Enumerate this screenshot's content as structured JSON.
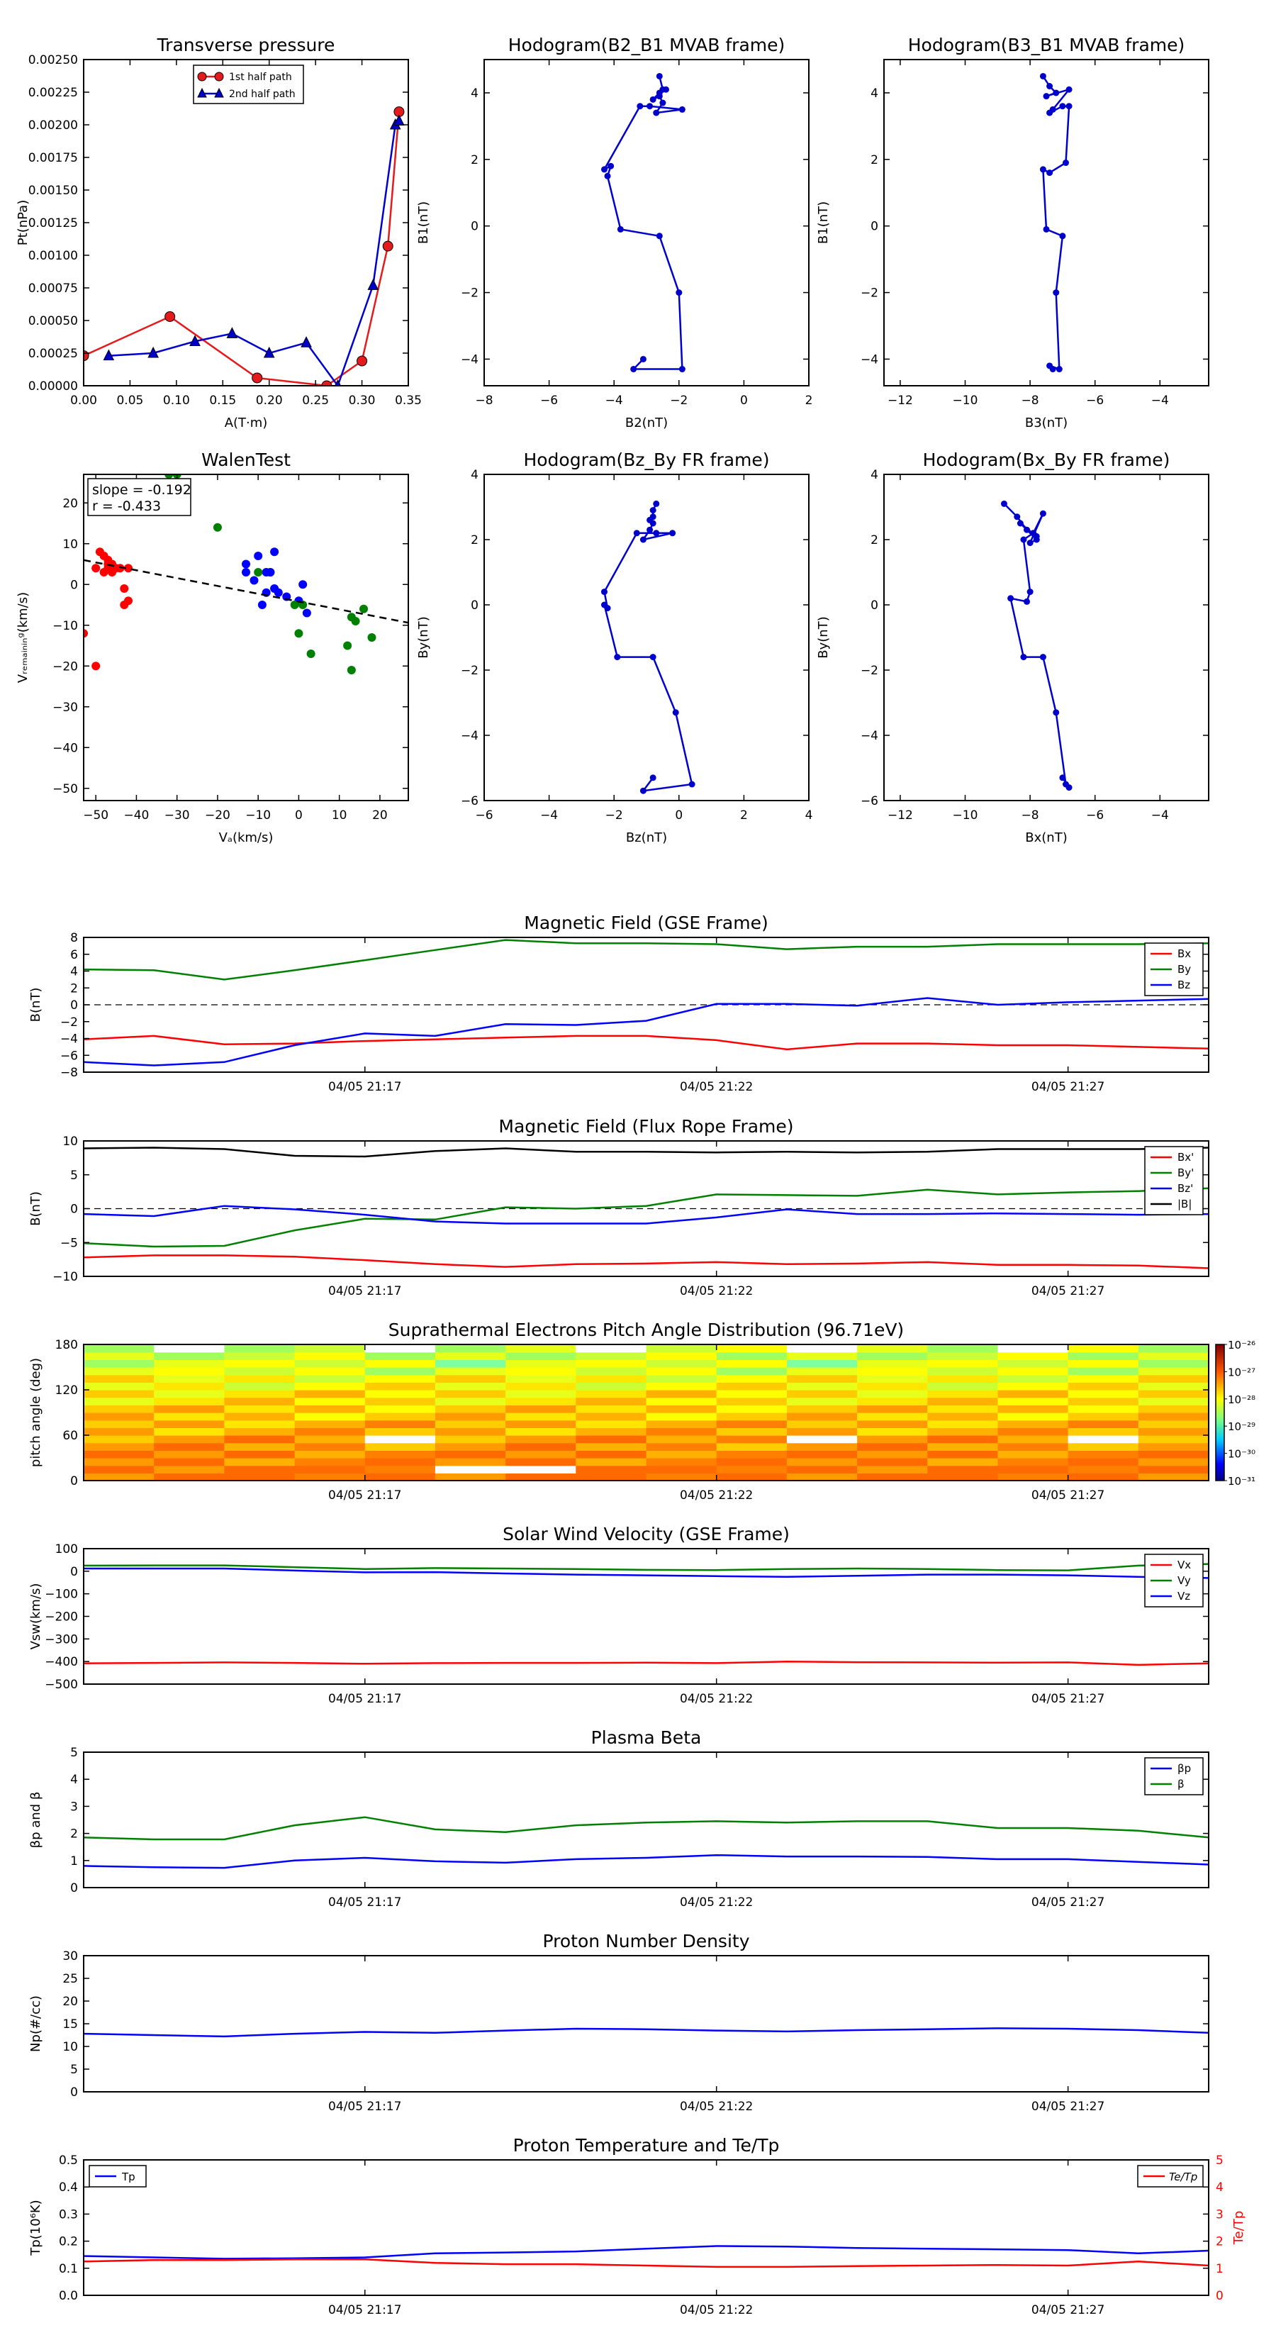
{
  "chart_data": [
    {
      "id": "tp",
      "type": "line",
      "title": "Transverse pressure",
      "xlabel": "A(T·m)",
      "ylabel": "Pt(nPa)",
      "xlim": [
        0,
        0.35
      ],
      "ylim": [
        0,
        0.0025
      ],
      "xticks": [
        "0.00",
        "0.05",
        "0.10",
        "0.15",
        "0.20",
        "0.25",
        "0.30",
        "0.35"
      ],
      "yticks": [
        "0.00000",
        "0.00025",
        "0.00050",
        "0.00075",
        "0.00100",
        "0.00125",
        "0.00150",
        "0.00175",
        "0.00200",
        "0.00225",
        "0.00250"
      ],
      "legend": [
        "1st half path",
        "2nd half path"
      ],
      "series": [
        {
          "name": "1st half path",
          "color": "#e41a1c",
          "marker": "circle",
          "x": [
            0.0,
            0.093,
            0.187,
            0.262,
            0.3,
            0.328,
            0.34
          ],
          "y": [
            0.00023,
            0.00053,
            6e-05,
            0.0,
            0.00019,
            0.00107,
            0.0021
          ]
        },
        {
          "name": "2nd half path",
          "color": "#0000cc",
          "marker": "triangle",
          "x": [
            0.027,
            0.075,
            0.12,
            0.16,
            0.2,
            0.24,
            0.274,
            0.312,
            0.336,
            0.34
          ],
          "y": [
            0.00023,
            0.00025,
            0.00034,
            0.0004,
            0.00025,
            0.00033,
            0.0,
            0.00077,
            0.002,
            0.00203
          ]
        }
      ]
    },
    {
      "id": "h1",
      "type": "line",
      "title": "Hodogram(B2_B1 MVAB frame)",
      "xlabel": "B2(nT)",
      "ylabel": "B1(nT)",
      "xlim": [
        -8,
        2
      ],
      "ylim": [
        -4.8,
        5.0
      ],
      "xticks": [
        "−8",
        "−6",
        "−4",
        "−2",
        "0",
        "2"
      ],
      "yticks": [
        "−4",
        "−2",
        "0",
        "2",
        "4"
      ],
      "series": [
        {
          "name": "B2-B1",
          "color": "#0000cc",
          "x": [
            -3.1,
            -3.4,
            -1.9,
            -2.0,
            -2.6,
            -3.8,
            -4.2,
            -4.1,
            -4.3,
            -3.2,
            -2.9,
            -1.9,
            -2.7,
            -2.5,
            -2.6,
            -2.8,
            -2.6,
            -2.4,
            -2.5,
            -2.6
          ],
          "y": [
            -4.0,
            -4.3,
            -4.3,
            -2.0,
            -0.3,
            -0.1,
            1.5,
            1.8,
            1.7,
            3.6,
            3.6,
            3.5,
            3.4,
            3.7,
            3.9,
            3.8,
            4.0,
            4.1,
            4.1,
            4.5
          ]
        }
      ]
    },
    {
      "id": "h2",
      "type": "line",
      "title": "Hodogram(B3_B1 MVAB frame)",
      "xlabel": "B3(nT)",
      "ylabel": "B1(nT)",
      "xlim": [
        -12.5,
        -2.5
      ],
      "ylim": [
        -4.8,
        5.0
      ],
      "xticks": [
        "−12",
        "−10",
        "−8",
        "−6",
        "−4"
      ],
      "yticks": [
        "−4",
        "−2",
        "0",
        "2",
        "4"
      ],
      "series": [
        {
          "name": "B3-B1",
          "color": "#0000cc",
          "x": [
            -7.3,
            -7.4,
            -7.1,
            -7.2,
            -7.0,
            -7.5,
            -7.6,
            -7.4,
            -6.9,
            -6.8,
            -7.0,
            -7.4,
            -7.3,
            -6.8,
            -7.5,
            -7.2,
            -7.4,
            -7.6
          ],
          "y": [
            -4.3,
            -4.2,
            -4.3,
            -2.0,
            -0.3,
            -0.1,
            1.7,
            1.6,
            1.9,
            3.6,
            3.6,
            3.4,
            3.5,
            4.1,
            3.9,
            4.0,
            4.2,
            4.5
          ]
        }
      ]
    },
    {
      "id": "walen",
      "type": "scatter",
      "title": "WalenTest",
      "xlabel": "Vₐ(km/s)",
      "ylabel": "Vᵣₑₘₐᵢₙᵢₙᵍ(km/s)",
      "xlim": [
        -53,
        27
      ],
      "ylim": [
        -53,
        27
      ],
      "xticks": [
        "−50",
        "−40",
        "−30",
        "−20",
        "−10",
        "0",
        "10",
        "20"
      ],
      "yticks": [
        "−50",
        "−40",
        "−30",
        "−20",
        "−10",
        "0",
        "10",
        "20"
      ],
      "annotation": [
        "slope = -0.192",
        "r = -0.433"
      ],
      "fit": {
        "slope": -0.192,
        "intercept": -4.2
      },
      "series": [
        {
          "name": "red",
          "color": "#ff0000",
          "x": [
            -53,
            -50,
            -48,
            -48,
            -47,
            -47,
            -46,
            -45,
            -44,
            -43,
            -43,
            -42,
            -42,
            -49,
            -47,
            -46,
            -50
          ],
          "y": [
            -12,
            4,
            3,
            7,
            5,
            6,
            5,
            4,
            4,
            -1,
            -5,
            -4,
            4,
            8,
            4,
            3,
            -20
          ]
        },
        {
          "name": "blue",
          "color": "#0000ff",
          "x": [
            -13,
            -13,
            -10,
            -9,
            -8,
            -8,
            -7,
            -6,
            -6,
            -5,
            -3,
            0,
            1,
            2,
            -11,
            -7
          ],
          "y": [
            5,
            3,
            7,
            -5,
            -2,
            3,
            3,
            8,
            -1,
            -2,
            -3,
            -4,
            0,
            -7,
            1,
            3
          ]
        },
        {
          "name": "green",
          "color": "#008000",
          "x": [
            -32,
            -30,
            -20,
            -10,
            0,
            1,
            3,
            12,
            13,
            14,
            16,
            18,
            13,
            -1
          ],
          "y": [
            27,
            27,
            14,
            3,
            -12,
            -5,
            -17,
            -15,
            -8,
            -9,
            -6,
            -13,
            -21,
            -5
          ]
        }
      ]
    },
    {
      "id": "h3",
      "type": "line",
      "title": "Hodogram(Bz_By FR frame)",
      "xlabel": "Bz(nT)",
      "ylabel": "By(nT)",
      "xlim": [
        -6,
        4
      ],
      "ylim": [
        -6,
        4
      ],
      "xticks": [
        "−6",
        "−4",
        "−2",
        "0",
        "2",
        "4"
      ],
      "yticks": [
        "−6",
        "−4",
        "−2",
        "0",
        "2",
        "4"
      ],
      "series": [
        {
          "name": "Bz-By",
          "color": "#0000cc",
          "x": [
            -0.8,
            -1.1,
            0.4,
            -0.1,
            -0.8,
            -1.9,
            -2.3,
            -2.2,
            -2.3,
            -1.3,
            -0.7,
            -0.2,
            -1.1,
            -0.9,
            -0.8,
            -0.9,
            -0.8,
            -0.8,
            -0.7
          ],
          "y": [
            -5.3,
            -5.7,
            -5.5,
            -3.3,
            -1.6,
            -1.6,
            0.0,
            -0.1,
            0.4,
            2.2,
            2.2,
            2.2,
            2.0,
            2.3,
            2.5,
            2.6,
            2.7,
            2.9,
            3.1
          ]
        }
      ]
    },
    {
      "id": "h4",
      "type": "line",
      "title": "Hodogram(Bx_By FR frame)",
      "xlabel": "Bx(nT)",
      "ylabel": "By(nT)",
      "xlim": [
        -12.5,
        -2.5
      ],
      "ylim": [
        -6,
        4
      ],
      "xticks": [
        "−12",
        "−10",
        "−8",
        "−6",
        "−4"
      ],
      "yticks": [
        "−6",
        "−4",
        "−2",
        "0",
        "2",
        "4"
      ],
      "series": [
        {
          "name": "Bx-By",
          "color": "#0000cc",
          "x": [
            -7.0,
            -6.8,
            -6.9,
            -7.2,
            -7.6,
            -8.2,
            -8.6,
            -8.1,
            -8.0,
            -8.2,
            -7.9,
            -7.6,
            -8.0,
            -7.8,
            -8.3,
            -7.8,
            -8.1,
            -8.4,
            -8.8
          ],
          "y": [
            -5.3,
            -5.6,
            -5.5,
            -3.3,
            -1.6,
            -1.6,
            0.2,
            0.1,
            0.4,
            2.0,
            2.2,
            2.8,
            1.9,
            2.0,
            2.5,
            2.1,
            2.3,
            2.7,
            3.1
          ]
        }
      ]
    },
    {
      "id": "bgse",
      "type": "line",
      "title": "Magnetic Field (GSE Frame)",
      "ylabel": "B(nT)",
      "xlim": [
        0,
        16
      ],
      "ylim": [
        -8,
        8
      ],
      "xtick_pos": [
        4,
        9,
        14
      ],
      "xticks": [
        "04/05 21:17",
        "04/05 21:22",
        "04/05 21:27"
      ],
      "yticks": [
        "−8",
        "−6",
        "−4",
        "−2",
        "0",
        "2",
        "4",
        "6",
        "8"
      ],
      "legend_pos": "top-right",
      "zero_line": true,
      "series": [
        {
          "name": "Bx",
          "color": "#ff0000",
          "values": [
            -4.1,
            -3.7,
            -4.7,
            -4.6,
            -4.3,
            -4.1,
            -3.9,
            -3.7,
            -3.7,
            -4.2,
            -5.3,
            -4.6,
            -4.6,
            -4.8,
            -4.8,
            -5.0,
            -5.2
          ]
        },
        {
          "name": "By",
          "color": "#008000",
          "values": [
            4.2,
            4.1,
            3.0,
            4.1,
            5.3,
            6.5,
            7.7,
            7.3,
            7.3,
            7.2,
            6.6,
            6.9,
            6.9,
            7.2,
            7.2,
            7.2,
            7.3
          ]
        },
        {
          "name": "Bz",
          "color": "#0000ff",
          "values": [
            -6.8,
            -7.2,
            -6.8,
            -4.8,
            -3.4,
            -3.7,
            -2.3,
            -2.4,
            -1.9,
            0.1,
            0.1,
            -0.1,
            0.8,
            0.0,
            0.3,
            0.5,
            0.7
          ]
        }
      ]
    },
    {
      "id": "bfr",
      "type": "line",
      "title": "Magnetic Field (Flux Rope Frame)",
      "ylabel": "B(nT)",
      "xlim": [
        0,
        16
      ],
      "ylim": [
        -10,
        10
      ],
      "xtick_pos": [
        4,
        9,
        14
      ],
      "xticks": [
        "04/05 21:17",
        "04/05 21:22",
        "04/05 21:27"
      ],
      "yticks": [
        "−10",
        "−5",
        "0",
        "5",
        "10"
      ],
      "legend_pos": "top-right",
      "zero_line": true,
      "series": [
        {
          "name": "Bx'",
          "color": "#ff0000",
          "values": [
            -7.2,
            -6.9,
            -6.9,
            -7.1,
            -7.6,
            -8.2,
            -8.6,
            -8.2,
            -8.1,
            -7.9,
            -8.2,
            -8.1,
            -7.9,
            -8.3,
            -8.3,
            -8.4,
            -8.8
          ]
        },
        {
          "name": "By'",
          "color": "#008000",
          "values": [
            -5.1,
            -5.6,
            -5.5,
            -3.2,
            -1.5,
            -1.6,
            0.2,
            0.0,
            0.4,
            2.1,
            2.0,
            1.9,
            2.8,
            2.1,
            2.4,
            2.6,
            3.0
          ]
        },
        {
          "name": "Bz'",
          "color": "#0000ff",
          "values": [
            -0.8,
            -1.1,
            0.4,
            -0.1,
            -0.9,
            -1.9,
            -2.2,
            -2.2,
            -2.2,
            -1.3,
            -0.1,
            -0.8,
            -0.8,
            -0.7,
            -0.8,
            -0.9,
            -0.8
          ]
        },
        {
          "name": "|B|",
          "color": "#000000",
          "values": [
            8.9,
            9.0,
            8.8,
            7.8,
            7.7,
            8.5,
            8.9,
            8.4,
            8.4,
            8.3,
            8.4,
            8.3,
            8.4,
            8.8,
            8.8,
            8.8,
            9.0
          ]
        }
      ]
    },
    {
      "id": "pad",
      "type": "heatmap",
      "title": "Suprathermal Electrons Pitch Angle Distribution (96.71eV)",
      "ylabel": "pitch angle (deg)",
      "xlim": [
        0,
        16
      ],
      "ylim": [
        0,
        180
      ],
      "xtick_pos": [
        4,
        9,
        14
      ],
      "xticks": [
        "04/05 21:17",
        "04/05 21:22",
        "04/05 21:27"
      ],
      "yticks": [
        "0",
        "60",
        "120",
        "180"
      ],
      "colorbar_labels": [
        "10⁻²⁶",
        "10⁻²⁷",
        "10⁻²⁸",
        "10⁻²⁹",
        "10⁻³⁰",
        "10⁻³¹"
      ],
      "nbins": 18
    },
    {
      "id": "vsw",
      "type": "line",
      "title": "Solar Wind Velocity (GSE Frame)",
      "ylabel": "Vsw(km/s)",
      "xlim": [
        0,
        16
      ],
      "ylim": [
        -500,
        100
      ],
      "xtick_pos": [
        4,
        9,
        14
      ],
      "xticks": [
        "04/05 21:17",
        "04/05 21:22",
        "04/05 21:27"
      ],
      "yticks": [
        "−500",
        "−400",
        "−300",
        "−200",
        "−100",
        "0",
        "100"
      ],
      "legend_pos": "top-right",
      "series": [
        {
          "name": "Vx",
          "color": "#ff0000",
          "values": [
            -408,
            -406,
            -404,
            -406,
            -410,
            -407,
            -406,
            -406,
            -405,
            -407,
            -400,
            -403,
            -404,
            -405,
            -404,
            -415,
            -408
          ]
        },
        {
          "name": "Vy",
          "color": "#008000",
          "values": [
            25,
            26,
            26,
            18,
            10,
            14,
            12,
            10,
            6,
            5,
            10,
            12,
            10,
            5,
            4,
            25,
            32
          ]
        },
        {
          "name": "Vz",
          "color": "#0000ff",
          "values": [
            12,
            12,
            12,
            3,
            -5,
            -4,
            -10,
            -15,
            -18,
            -22,
            -25,
            -20,
            -15,
            -15,
            -18,
            -25,
            -30
          ]
        }
      ]
    },
    {
      "id": "beta",
      "type": "line",
      "title": "Plasma Beta",
      "ylabel": "βp and β",
      "xlim": [
        0,
        16
      ],
      "ylim": [
        0,
        5
      ],
      "xtick_pos": [
        4,
        9,
        14
      ],
      "xticks": [
        "04/05 21:17",
        "04/05 21:22",
        "04/05 21:27"
      ],
      "yticks": [
        "0",
        "1",
        "2",
        "3",
        "4",
        "5"
      ],
      "legend_pos": "top-right",
      "series": [
        {
          "name": "βp",
          "color": "#0000ff",
          "values": [
            0.8,
            0.75,
            0.73,
            1.0,
            1.1,
            0.97,
            0.92,
            1.05,
            1.1,
            1.2,
            1.15,
            1.15,
            1.13,
            1.05,
            1.05,
            0.95,
            0.85
          ]
        },
        {
          "name": "β",
          "color": "#008000",
          "values": [
            1.85,
            1.78,
            1.78,
            2.3,
            2.6,
            2.15,
            2.05,
            2.3,
            2.4,
            2.45,
            2.4,
            2.45,
            2.45,
            2.2,
            2.2,
            2.1,
            1.85
          ]
        }
      ]
    },
    {
      "id": "np",
      "type": "line",
      "title": "Proton Number Density",
      "ylabel": "Np(#/cc)",
      "xlim": [
        0,
        16
      ],
      "ylim": [
        0,
        30
      ],
      "xtick_pos": [
        4,
        9,
        14
      ],
      "xticks": [
        "04/05 21:17",
        "04/05 21:22",
        "04/05 21:27"
      ],
      "yticks": [
        "0",
        "5",
        "10",
        "15",
        "20",
        "25",
        "30"
      ],
      "series": [
        {
          "name": "Np",
          "color": "#0000ff",
          "values": [
            12.8,
            12.5,
            12.2,
            12.8,
            13.2,
            13.0,
            13.5,
            13.9,
            13.8,
            13.5,
            13.3,
            13.6,
            13.8,
            14.0,
            13.9,
            13.6,
            13.0
          ]
        }
      ]
    },
    {
      "id": "tp2",
      "type": "line",
      "title": "Proton Temperature and Te/Tp",
      "ylabel": "Tp(10⁶K)",
      "ylabel_right": "Te/Tp",
      "xlim": [
        0,
        16
      ],
      "ylim": [
        0,
        0.5
      ],
      "ylim_right": [
        0,
        5
      ],
      "xtick_pos": [
        4,
        9,
        14
      ],
      "xticks": [
        "04/05 21:17",
        "04/05 21:22",
        "04/05 21:27"
      ],
      "yticks": [
        "0.0",
        "0.1",
        "0.2",
        "0.3",
        "0.4",
        "0.5"
      ],
      "yticks_right": [
        "0",
        "1",
        "2",
        "3",
        "4",
        "5"
      ],
      "legend_left": "Tp",
      "legend_right": "Te/Tp",
      "series": [
        {
          "name": "Tp",
          "color": "#0000ff",
          "axis": "left",
          "values": [
            0.145,
            0.14,
            0.135,
            0.137,
            0.14,
            0.155,
            0.158,
            0.162,
            0.172,
            0.182,
            0.18,
            0.175,
            0.172,
            0.17,
            0.167,
            0.155,
            0.165
          ]
        },
        {
          "name": "Te/Tp",
          "color": "#ff0000",
          "axis": "right",
          "values": [
            1.25,
            1.3,
            1.3,
            1.33,
            1.33,
            1.2,
            1.15,
            1.15,
            1.1,
            1.05,
            1.05,
            1.08,
            1.1,
            1.12,
            1.1,
            1.25,
            1.1
          ]
        }
      ]
    }
  ]
}
